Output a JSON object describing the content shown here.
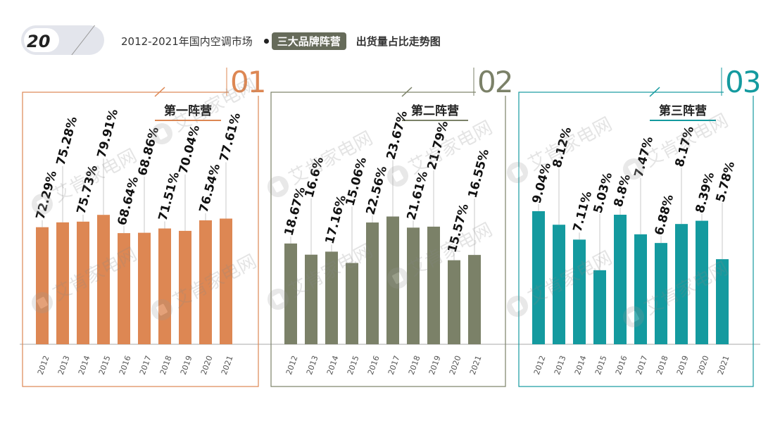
{
  "page_number": "20",
  "header": {
    "title": "2012-2021年国内空调市场",
    "highlight": "三大品牌阵营",
    "subtitle": "出货量占比走势图"
  },
  "watermark": "艾肯家电网",
  "colors": {
    "first": "#dd8753",
    "second": "#7b8168",
    "third": "#149a9f"
  },
  "chart_data": [
    {
      "type": "bar",
      "panel_number": "01",
      "title": "第一阵营",
      "categories": [
        "2012",
        "2013",
        "2014",
        "2015",
        "2016",
        "2017",
        "2018",
        "2019",
        "2020",
        "2021"
      ],
      "values": [
        72.29,
        75.28,
        75.73,
        79.91,
        68.64,
        68.86,
        71.51,
        70.04,
        76.54,
        77.61
      ],
      "labels": [
        "72.29%",
        "75.28%",
        "75.73%",
        "79.91%",
        "68.64%",
        "68.86%",
        "71.51%",
        "70.04%",
        "76.54%",
        "77.61%"
      ]
    },
    {
      "type": "bar",
      "panel_number": "02",
      "title": "第二阵营",
      "categories": [
        "2012",
        "2013",
        "2014",
        "2015",
        "2016",
        "2017",
        "2018",
        "2019",
        "2020",
        "2021"
      ],
      "values": [
        18.67,
        16.6,
        17.16,
        15.06,
        22.56,
        23.67,
        21.61,
        21.79,
        15.57,
        16.55
      ],
      "labels": [
        "18.67%",
        "16.6%",
        "17.16%",
        "15.06%",
        "22.56%",
        "23.67%",
        "21.61%",
        "21.79%",
        "15.57%",
        "16.55%"
      ]
    },
    {
      "type": "bar",
      "panel_number": "03",
      "title": "第三阵营",
      "categories": [
        "2012",
        "2013",
        "2014",
        "2015",
        "2016",
        "2017",
        "2018",
        "2019",
        "2020",
        "2021"
      ],
      "values": [
        9.04,
        8.12,
        7.11,
        5.03,
        8.8,
        7.47,
        6.88,
        8.17,
        8.39,
        5.78
      ],
      "labels": [
        "9.04%",
        "8.12%",
        "7.11%",
        "5.03%",
        "8.8%",
        "7.47%",
        "6.88%",
        "8.17%",
        "8.39%",
        "5.78%"
      ]
    }
  ]
}
